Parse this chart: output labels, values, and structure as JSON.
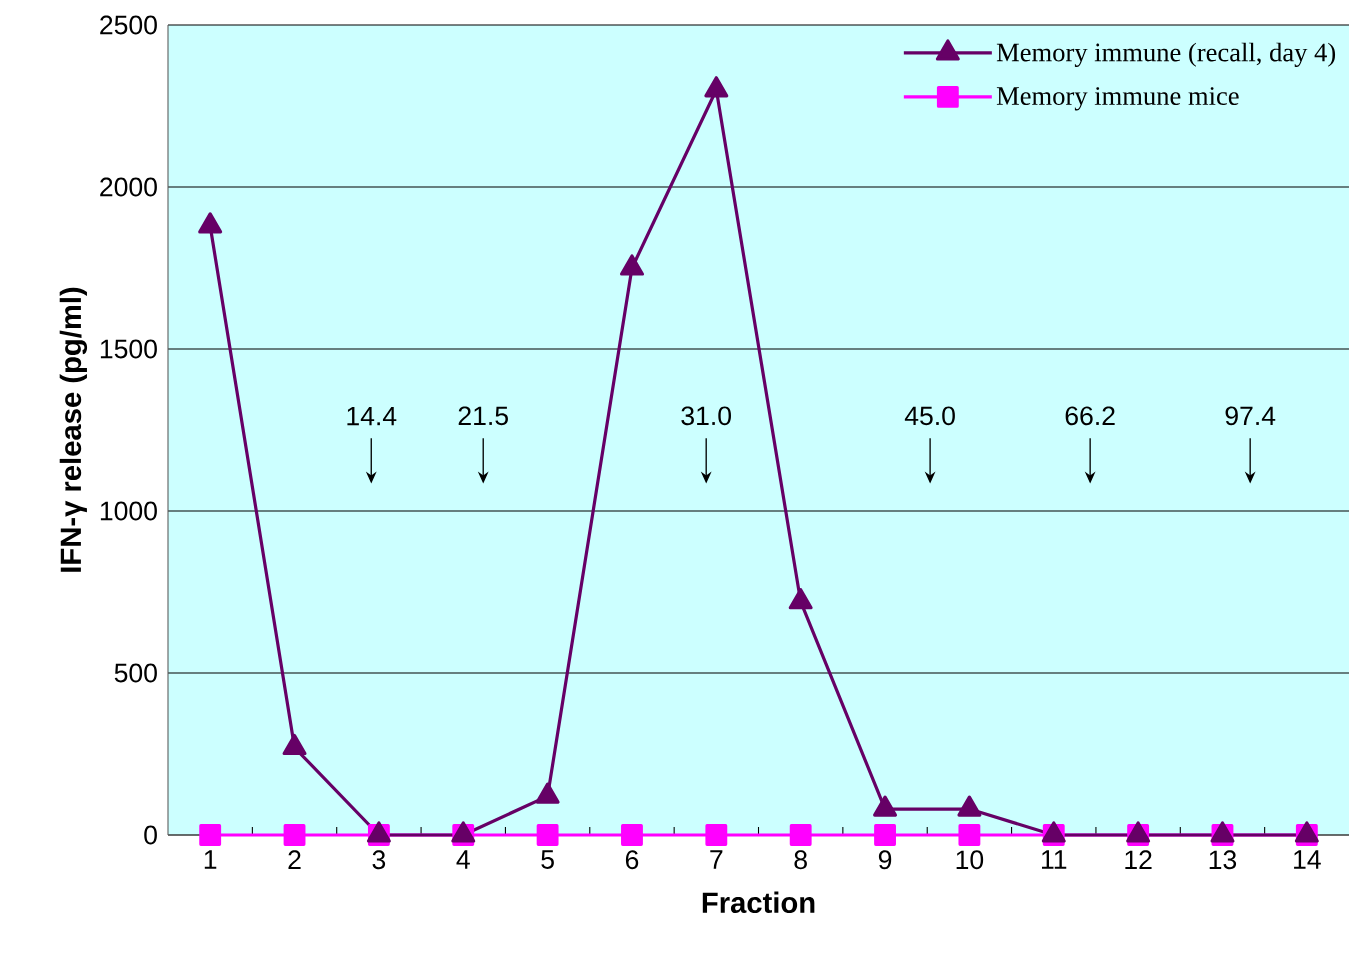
{
  "chart_data": {
    "type": "line",
    "xlabel": "Fraction",
    "ylabel": "IFN-γ release (pg/ml)",
    "x": [
      1,
      2,
      3,
      4,
      5,
      6,
      7,
      8,
      9,
      10,
      11,
      12,
      13,
      14
    ],
    "xlim": [
      0.5,
      14.5
    ],
    "xticks": [
      1,
      2,
      3,
      4,
      5,
      6,
      7,
      8,
      9,
      10,
      11,
      12,
      13,
      14
    ],
    "ylim": [
      0,
      2500
    ],
    "yticks": [
      0,
      500,
      1000,
      1500,
      2000,
      2500
    ],
    "grid": "y",
    "legend": "top right",
    "series": [
      {
        "name": "Memory immune (recall, day 4)",
        "color": "#660066",
        "marker": "triangle",
        "values": [
          1880,
          270,
          0,
          0,
          120,
          1750,
          2300,
          720,
          80,
          80,
          0,
          0,
          0,
          0
        ]
      },
      {
        "name": "Memory immune mice",
        "color": "#ff00ff",
        "marker": "square",
        "values": [
          0,
          0,
          0,
          0,
          0,
          0,
          0,
          0,
          0,
          0,
          0,
          0,
          0,
          0
        ]
      }
    ],
    "annotations": [
      "14.4",
      "21.5",
      "31.0",
      "45.0",
      "66.2",
      "97.4"
    ]
  }
}
